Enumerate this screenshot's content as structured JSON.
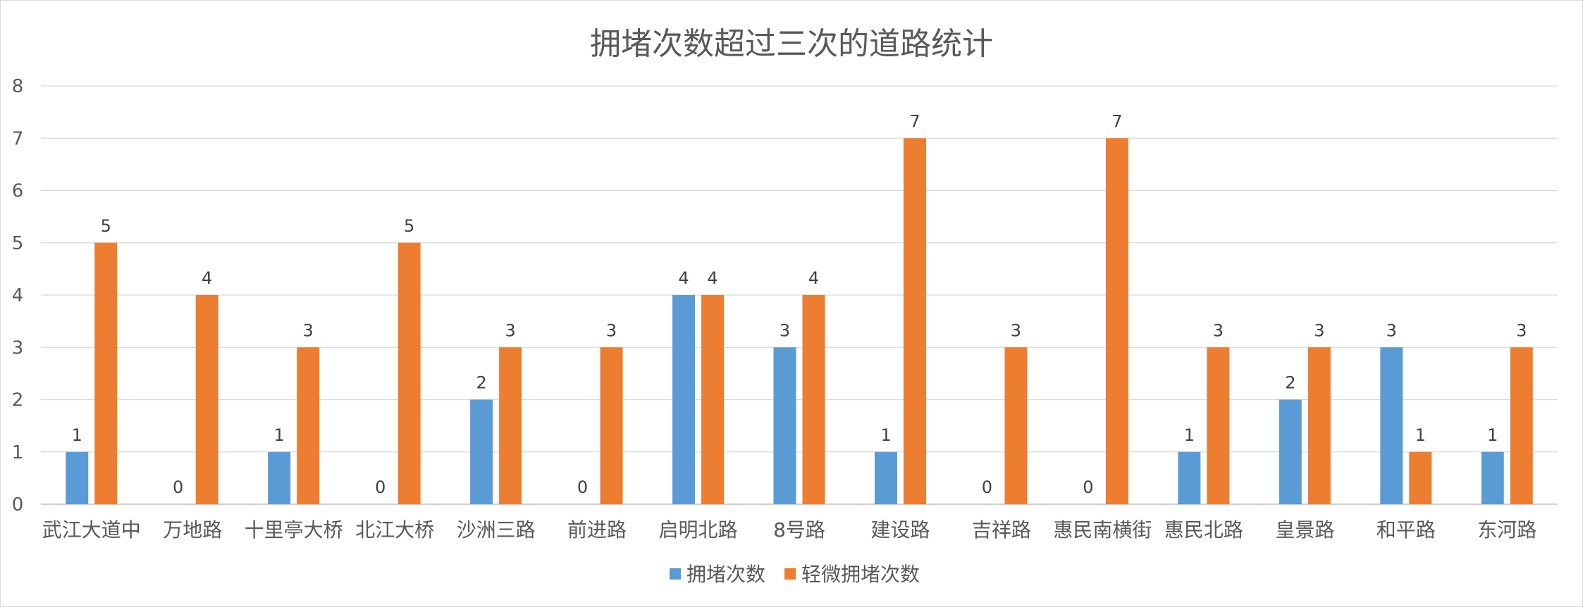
{
  "chart_data": {
    "type": "bar",
    "title": "拥堵次数超过三次的道路统计",
    "categories": [
      "武江大道中",
      "万地路",
      "十里亭大桥",
      "北江大桥",
      "沙洲三路",
      "前进路",
      "启明北路",
      "8号路",
      "建设路",
      "吉祥路",
      "惠民南横街",
      "惠民北路",
      "皇景路",
      "和平路",
      "东河路"
    ],
    "series": [
      {
        "name": "拥堵次数",
        "color": "#5b9bd5",
        "values": [
          1,
          0,
          1,
          0,
          2,
          0,
          4,
          3,
          1,
          0,
          0,
          1,
          2,
          3,
          1
        ]
      },
      {
        "name": "轻微拥堵次数",
        "color": "#ed7d31",
        "values": [
          5,
          4,
          3,
          5,
          3,
          3,
          4,
          4,
          7,
          3,
          7,
          3,
          3,
          1,
          3
        ]
      }
    ],
    "ylim": [
      0,
      8
    ],
    "yticks": [
      "0",
      "1",
      "2",
      "3",
      "4",
      "5",
      "6",
      "7",
      "8"
    ],
    "grid": true,
    "legend_position": "bottom",
    "data_labels": true
  }
}
